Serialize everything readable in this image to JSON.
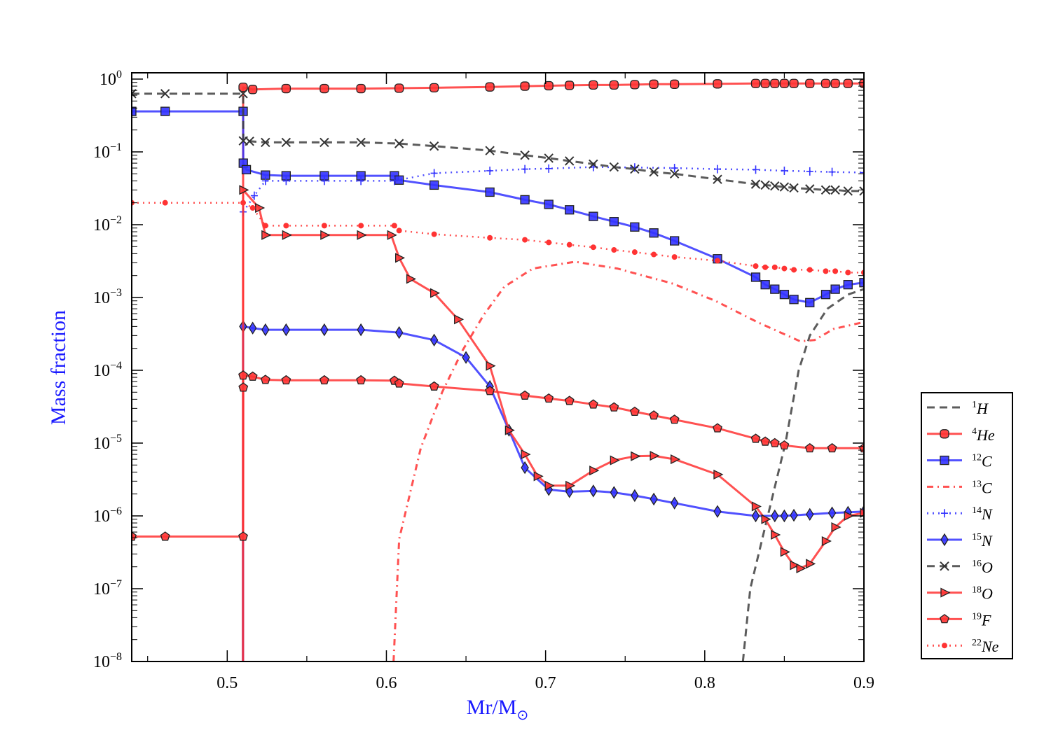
{
  "chart_data": {
    "type": "line",
    "title": "",
    "xlabel": "Mr/M",
    "xlabel_symbol": "⊙",
    "ylabel": "Mass fraction",
    "xlim": [
      0.44,
      0.9
    ],
    "ylim": [
      1e-08,
      1.22
    ],
    "yscale": "log",
    "xticks": [
      "0.5",
      "0.6",
      "0.7",
      "0.8",
      "0.9"
    ],
    "xtick_values": [
      0.5,
      0.6,
      0.7,
      0.8,
      0.9
    ],
    "ytick_exponents": [
      "0",
      "−1",
      "−2",
      "−3",
      "−4",
      "−5",
      "−6",
      "−7",
      "−8"
    ],
    "ytick_base": "10",
    "grid": false,
    "legend_position": "outside-right",
    "series": [
      {
        "name": "H",
        "mass": "1",
        "color": "#404040",
        "dash": "11,7",
        "marker": "none",
        "x": [
          0.824,
          0.8286,
          0.8396,
          0.8507,
          0.859,
          0.866,
          0.877,
          0.89,
          0.9
        ],
        "y": [
          1e-08,
          1e-07,
          1e-06,
          1e-05,
          0.0001,
          0.0003,
          0.0007,
          0.0011,
          0.0013
        ]
      },
      {
        "name": "He",
        "mass": "4",
        "color": "#ff3333",
        "dash": "",
        "marker": "circle",
        "x": [
          0.5099,
          0.51,
          0.516,
          0.537,
          0.561,
          0.584,
          0.608,
          0.63,
          0.665,
          0.687,
          0.702,
          0.715,
          0.73,
          0.743,
          0.756,
          0.768,
          0.781,
          0.808,
          0.832,
          0.838,
          0.844,
          0.85,
          0.856,
          0.866,
          0.876,
          0.882,
          0.89,
          0.9
        ],
        "y": [
          1e-08,
          0.77,
          0.72,
          0.74,
          0.74,
          0.74,
          0.75,
          0.76,
          0.78,
          0.8,
          0.81,
          0.82,
          0.83,
          0.83,
          0.84,
          0.85,
          0.85,
          0.86,
          0.87,
          0.87,
          0.87,
          0.87,
          0.87,
          0.87,
          0.87,
          0.87,
          0.87,
          0.87
        ]
      },
      {
        "name": "C",
        "mass": "12",
        "color": "#3333ff",
        "dash": "",
        "marker": "square",
        "x": [
          0.44,
          0.461,
          0.51,
          0.5101,
          0.512,
          0.524,
          0.537,
          0.561,
          0.584,
          0.605,
          0.608,
          0.63,
          0.665,
          0.687,
          0.702,
          0.715,
          0.73,
          0.743,
          0.756,
          0.768,
          0.781,
          0.808,
          0.832,
          0.838,
          0.844,
          0.85,
          0.856,
          0.866,
          0.876,
          0.882,
          0.89,
          0.9
        ],
        "y": [
          0.36,
          0.36,
          0.36,
          0.07,
          0.057,
          0.048,
          0.047,
          0.047,
          0.047,
          0.047,
          0.041,
          0.035,
          0.028,
          0.022,
          0.019,
          0.016,
          0.013,
          0.011,
          0.0093,
          0.0077,
          0.006,
          0.0034,
          0.0019,
          0.0015,
          0.0013,
          0.0011,
          0.00094,
          0.00085,
          0.0011,
          0.0013,
          0.0015,
          0.0016
        ]
      },
      {
        "name": "C",
        "mass": "13",
        "color": "#ff3333",
        "dash": "9,6,2,6",
        "marker": "none",
        "x": [
          0.6045,
          0.608,
          0.6216,
          0.635,
          0.648,
          0.661,
          0.674,
          0.692,
          0.7185,
          0.745,
          0.78,
          0.8066,
          0.833,
          0.86,
          0.869,
          0.881,
          0.9
        ],
        "y": [
          1e-08,
          4.8e-07,
          8.5e-06,
          5e-05,
          0.00019,
          0.00057,
          0.0014,
          0.0025,
          0.0031,
          0.0025,
          0.00155,
          0.0009,
          0.00046,
          0.00025,
          0.00026,
          0.00037,
          0.00046
        ]
      },
      {
        "name": "N",
        "mass": "14",
        "color": "#3333ff",
        "dash": "2,6",
        "marker": "plus",
        "x": [
          0.51,
          0.517,
          0.524,
          0.537,
          0.561,
          0.584,
          0.605,
          0.63,
          0.665,
          0.687,
          0.702,
          0.73,
          0.756,
          0.781,
          0.808,
          0.832,
          0.85,
          0.866,
          0.88,
          0.9
        ],
        "y": [
          0.015,
          0.025,
          0.04,
          0.04,
          0.04,
          0.04,
          0.04,
          0.051,
          0.055,
          0.058,
          0.059,
          0.062,
          0.061,
          0.06,
          0.058,
          0.057,
          0.055,
          0.054,
          0.053,
          0.052
        ]
      },
      {
        "name": "N",
        "mass": "15",
        "color": "#3333ff",
        "dash": "",
        "marker": "diamond",
        "x": [
          0.5099,
          0.51,
          0.516,
          0.524,
          0.537,
          0.561,
          0.584,
          0.608,
          0.63,
          0.65,
          0.665,
          0.677,
          0.687,
          0.702,
          0.715,
          0.73,
          0.743,
          0.756,
          0.768,
          0.781,
          0.808,
          0.832,
          0.844,
          0.85,
          0.856,
          0.866,
          0.88,
          0.89,
          0.9
        ],
        "y": [
          1e-08,
          0.0004,
          0.00038,
          0.00036,
          0.00036,
          0.00036,
          0.00036,
          0.00033,
          0.00026,
          0.00015,
          6e-05,
          1.5e-05,
          4.6e-06,
          2.3e-06,
          2.15e-06,
          2.2e-06,
          2.1e-06,
          1.9e-06,
          1.7e-06,
          1.5e-06,
          1.15e-06,
          1e-06,
          1e-06,
          1e-06,
          1.02e-06,
          1.05e-06,
          1.1e-06,
          1.12e-06,
          1.15e-06
        ]
      },
      {
        "name": "O",
        "mass": "16",
        "color": "#404040",
        "dash": "11,7",
        "marker": "x",
        "x": [
          0.44,
          0.461,
          0.51,
          0.5101,
          0.514,
          0.524,
          0.537,
          0.561,
          0.584,
          0.608,
          0.63,
          0.665,
          0.687,
          0.702,
          0.715,
          0.73,
          0.743,
          0.756,
          0.768,
          0.781,
          0.808,
          0.832,
          0.838,
          0.844,
          0.85,
          0.856,
          0.866,
          0.876,
          0.882,
          0.89,
          0.9
        ],
        "y": [
          0.63,
          0.63,
          0.63,
          0.142,
          0.14,
          0.135,
          0.135,
          0.135,
          0.135,
          0.13,
          0.12,
          0.104,
          0.09,
          0.082,
          0.075,
          0.068,
          0.062,
          0.058,
          0.053,
          0.05,
          0.042,
          0.036,
          0.035,
          0.034,
          0.033,
          0.032,
          0.031,
          0.03,
          0.03,
          0.029,
          0.029
        ]
      },
      {
        "name": "O",
        "mass": "18",
        "color": "#ff3333",
        "dash": "",
        "marker": "triangle",
        "x": [
          0.5099,
          0.51,
          0.52,
          0.524,
          0.537,
          0.561,
          0.584,
          0.603,
          0.608,
          0.615,
          0.63,
          0.645,
          0.665,
          0.677,
          0.687,
          0.695,
          0.702,
          0.715,
          0.73,
          0.743,
          0.756,
          0.768,
          0.781,
          0.808,
          0.832,
          0.838,
          0.844,
          0.85,
          0.856,
          0.86,
          0.866,
          0.876,
          0.882,
          0.89,
          0.9
        ],
        "y": [
          1e-08,
          0.03,
          0.017,
          0.0072,
          0.0072,
          0.0072,
          0.0072,
          0.0072,
          0.0035,
          0.0018,
          0.00115,
          0.0005,
          0.000115,
          1.5e-05,
          7e-06,
          3.5e-06,
          2.6e-06,
          2.6e-06,
          4.2e-06,
          5.8e-06,
          6.6e-06,
          6.7e-06,
          6e-06,
          3.7e-06,
          1.35e-06,
          9e-07,
          5.5e-07,
          3.2e-07,
          2.1e-07,
          1.9e-07,
          2.2e-07,
          4.5e-07,
          7e-07,
          1e-06,
          1.1e-06
        ]
      },
      {
        "name": "F",
        "mass": "19",
        "color": "#ff3333",
        "dash": "",
        "marker": "pentagon",
        "x": [
          0.44,
          0.461,
          0.51,
          0.5101,
          0.51,
          0.516,
          0.524,
          0.537,
          0.561,
          0.584,
          0.605,
          0.608,
          0.63,
          0.665,
          0.687,
          0.702,
          0.715,
          0.73,
          0.743,
          0.756,
          0.768,
          0.781,
          0.808,
          0.832,
          0.838,
          0.844,
          0.85,
          0.866,
          0.88,
          0.9
        ],
        "y": [
          5.2e-07,
          5.2e-07,
          5.2e-07,
          5.8e-05,
          8.5e-05,
          8.2e-05,
          7.4e-05,
          7.3e-05,
          7.3e-05,
          7.3e-05,
          7.2e-05,
          6.6e-05,
          6e-05,
          5.2e-05,
          4.5e-05,
          4.1e-05,
          3.8e-05,
          3.4e-05,
          3.1e-05,
          2.7e-05,
          2.4e-05,
          2.1e-05,
          1.6e-05,
          1.15e-05,
          1.05e-05,
          1e-05,
          9.3e-06,
          8.5e-06,
          8.5e-06,
          8.5e-06
        ]
      },
      {
        "name": "Ne",
        "mass": "22",
        "color": "#ff3333",
        "dash": "2,6",
        "marker": "dot",
        "x": [
          0.44,
          0.461,
          0.51,
          0.516,
          0.524,
          0.537,
          0.561,
          0.584,
          0.605,
          0.608,
          0.63,
          0.665,
          0.687,
          0.702,
          0.715,
          0.73,
          0.743,
          0.756,
          0.768,
          0.781,
          0.808,
          0.832,
          0.838,
          0.844,
          0.85,
          0.856,
          0.866,
          0.876,
          0.882,
          0.89,
          0.9
        ],
        "y": [
          0.02,
          0.02,
          0.02,
          0.017,
          0.0097,
          0.0097,
          0.0097,
          0.0097,
          0.0097,
          0.0083,
          0.0074,
          0.0066,
          0.0062,
          0.0057,
          0.0053,
          0.0049,
          0.0045,
          0.0042,
          0.0039,
          0.0036,
          0.0032,
          0.0027,
          0.0026,
          0.0026,
          0.0025,
          0.0024,
          0.0024,
          0.0023,
          0.0023,
          0.0022,
          0.0022
        ]
      }
    ]
  }
}
